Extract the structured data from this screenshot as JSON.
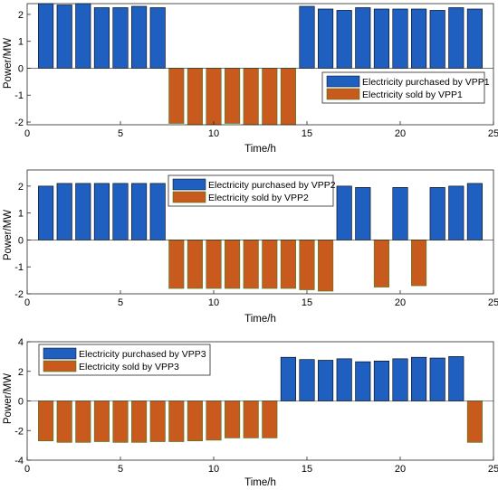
{
  "colors": {
    "purchased": "#1f5fbf",
    "sold": "#c85a1e",
    "sold_edge": "#3a7d22",
    "axis": "#262626",
    "background": "#ffffff"
  },
  "chart_data": [
    {
      "type": "bar",
      "xlabel": "Time/h",
      "ylabel": "Power/MW",
      "xlim": [
        0,
        25
      ],
      "ylim": [
        -2.1,
        2.4
      ],
      "xticks": [
        0,
        5,
        10,
        15,
        20,
        25
      ],
      "yticks": [
        -2,
        -1,
        0,
        1,
        2
      ],
      "grid": false,
      "legend_position": "center-right",
      "x": [
        1,
        2,
        3,
        4,
        5,
        6,
        7,
        8,
        9,
        10,
        11,
        12,
        13,
        14,
        15,
        16,
        17,
        18,
        19,
        20,
        21,
        22,
        23,
        24
      ],
      "series": [
        {
          "name": "Electricity purchased by VPP1",
          "color_key": "purchased",
          "values": [
            2.4,
            2.35,
            2.4,
            2.25,
            2.25,
            2.3,
            2.25,
            0,
            0,
            0,
            0,
            0,
            0,
            0,
            2.3,
            2.2,
            2.15,
            2.25,
            2.2,
            2.2,
            2.2,
            2.15,
            2.25,
            2.2
          ]
        },
        {
          "name": "Electricity sold by VPP1",
          "color_key": "sold",
          "values": [
            0,
            0,
            0,
            0,
            0,
            0,
            0,
            -2.05,
            -2.1,
            -2.1,
            -2.05,
            -2.1,
            -2.1,
            -2.1,
            0,
            0,
            0,
            0,
            0,
            0,
            0,
            0,
            0,
            0
          ]
        }
      ]
    },
    {
      "type": "bar",
      "xlabel": "Time/h",
      "ylabel": "Power/MW",
      "xlim": [
        0,
        25
      ],
      "ylim": [
        -2,
        2.6
      ],
      "xticks": [
        0,
        5,
        10,
        15,
        20,
        25
      ],
      "yticks": [
        -2,
        -1,
        0,
        1,
        2
      ],
      "grid": false,
      "legend_position": "top-center",
      "x": [
        1,
        2,
        3,
        4,
        5,
        6,
        7,
        8,
        9,
        10,
        11,
        12,
        13,
        14,
        15,
        16,
        17,
        18,
        19,
        20,
        21,
        22,
        23,
        24
      ],
      "series": [
        {
          "name": "Electricity purchased by VPP2",
          "color_key": "purchased",
          "values": [
            2.0,
            2.1,
            2.1,
            2.1,
            2.1,
            2.1,
            2.1,
            0,
            0,
            0,
            0,
            0,
            0,
            0,
            0,
            0,
            2.0,
            1.95,
            0,
            1.95,
            0,
            1.95,
            2.0,
            2.1
          ]
        },
        {
          "name": "Electricity sold by VPP2",
          "color_key": "sold",
          "values": [
            0,
            0,
            0,
            0,
            0,
            0,
            0,
            -1.8,
            -1.8,
            -1.8,
            -1.8,
            -1.8,
            -1.8,
            -1.8,
            -1.85,
            -1.9,
            0,
            0,
            -1.75,
            0,
            -1.7,
            0,
            0,
            0
          ]
        }
      ]
    },
    {
      "type": "bar",
      "xlabel": "Time/h",
      "ylabel": "Power/MW",
      "xlim": [
        0,
        25
      ],
      "ylim": [
        -4,
        4
      ],
      "xticks": [
        0,
        5,
        10,
        15,
        20,
        25
      ],
      "yticks": [
        -4,
        -2,
        0,
        2,
        4
      ],
      "grid": false,
      "legend_position": "top-left",
      "x": [
        1,
        2,
        3,
        4,
        5,
        6,
        7,
        8,
        9,
        10,
        11,
        12,
        13,
        14,
        15,
        16,
        17,
        18,
        19,
        20,
        21,
        22,
        23,
        24
      ],
      "series": [
        {
          "name": "Electricity purchased by VPP3",
          "color_key": "purchased",
          "values": [
            0,
            0,
            0,
            0,
            0,
            0,
            0,
            0,
            0,
            0,
            0,
            0,
            0,
            2.95,
            2.8,
            2.75,
            2.85,
            2.65,
            2.7,
            2.85,
            2.95,
            2.9,
            3.0,
            0
          ]
        },
        {
          "name": "Electricity sold by VPP3",
          "color_key": "sold",
          "values": [
            -2.7,
            -2.8,
            -2.8,
            -2.75,
            -2.8,
            -2.8,
            -2.75,
            -2.75,
            -2.7,
            -2.65,
            -2.5,
            -2.5,
            -2.5,
            0,
            0,
            0,
            0,
            0,
            0,
            0,
            0,
            0,
            0,
            -2.8
          ]
        }
      ]
    }
  ]
}
